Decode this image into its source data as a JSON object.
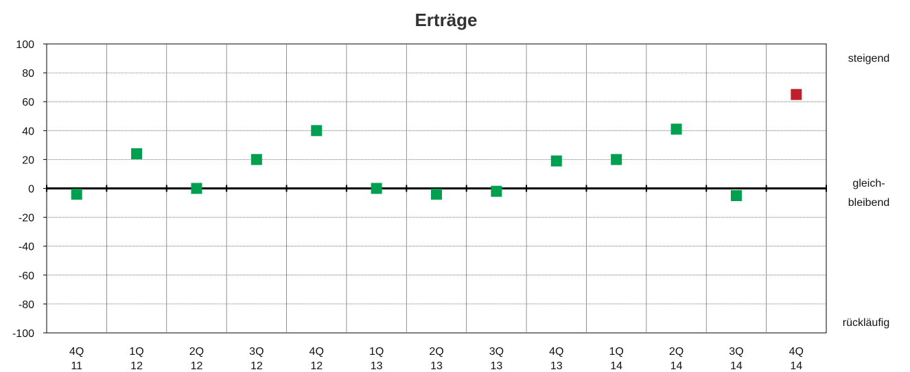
{
  "chart_data": {
    "type": "scatter",
    "title": "Erträge",
    "xlabel": "",
    "ylabel": "",
    "ylim": [
      -100,
      100
    ],
    "yticks": [
      100,
      80,
      60,
      40,
      20,
      0,
      -20,
      -40,
      -60,
      -80,
      -100
    ],
    "categories": [
      {
        "top": "4Q",
        "bottom": "11"
      },
      {
        "top": "1Q",
        "bottom": "12"
      },
      {
        "top": "2Q",
        "bottom": "12"
      },
      {
        "top": "3Q",
        "bottom": "12"
      },
      {
        "top": "4Q",
        "bottom": "12"
      },
      {
        "top": "1Q",
        "bottom": "13"
      },
      {
        "top": "2Q",
        "bottom": "13"
      },
      {
        "top": "3Q",
        "bottom": "13"
      },
      {
        "top": "4Q",
        "bottom": "13"
      },
      {
        "top": "1Q",
        "bottom": "14"
      },
      {
        "top": "2Q",
        "bottom": "14"
      },
      {
        "top": "3Q",
        "bottom": "14"
      },
      {
        "top": "4Q",
        "bottom": "14"
      }
    ],
    "values": [
      -4,
      24,
      0,
      20,
      40,
      0,
      -4,
      -2,
      19,
      20,
      41,
      -5,
      65
    ],
    "point_colors": [
      "#00a050",
      "#00a050",
      "#00a050",
      "#00a050",
      "#00a050",
      "#00a050",
      "#00a050",
      "#00a050",
      "#00a050",
      "#00a050",
      "#00a050",
      "#00a050",
      "#c0202a"
    ],
    "grid": true,
    "right_labels": {
      "top": "steigend",
      "middle_line1": "gleich-",
      "middle_line2": "bleibend",
      "bottom": "rückläufig"
    }
  }
}
